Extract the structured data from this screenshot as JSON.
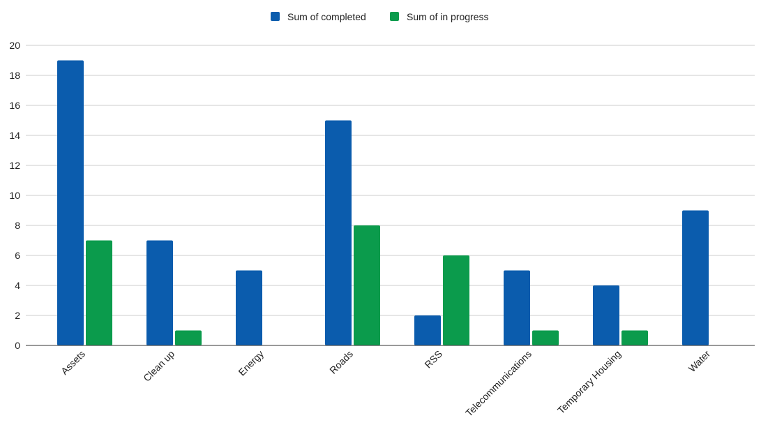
{
  "chart_data": {
    "type": "bar",
    "categories": [
      "Assets",
      "Clean up",
      "Energy",
      "Roads",
      "RSS",
      "Telecommunications",
      "Temporary Housing",
      "Water"
    ],
    "series": [
      {
        "name": "Sum of completed",
        "color": "#0b5cad",
        "values": [
          19,
          7,
          5,
          15,
          2,
          5,
          4,
          9
        ]
      },
      {
        "name": "Sum of in progress",
        "color": "#0b9b4c",
        "values": [
          7,
          1,
          0,
          8,
          6,
          1,
          1,
          0
        ]
      }
    ],
    "ylim": [
      0,
      20
    ],
    "yticks": [
      0,
      2,
      4,
      6,
      8,
      10,
      12,
      14,
      16,
      18,
      20
    ],
    "grid": true,
    "legend_position": "top-center",
    "xlabel": "",
    "ylabel": ""
  }
}
